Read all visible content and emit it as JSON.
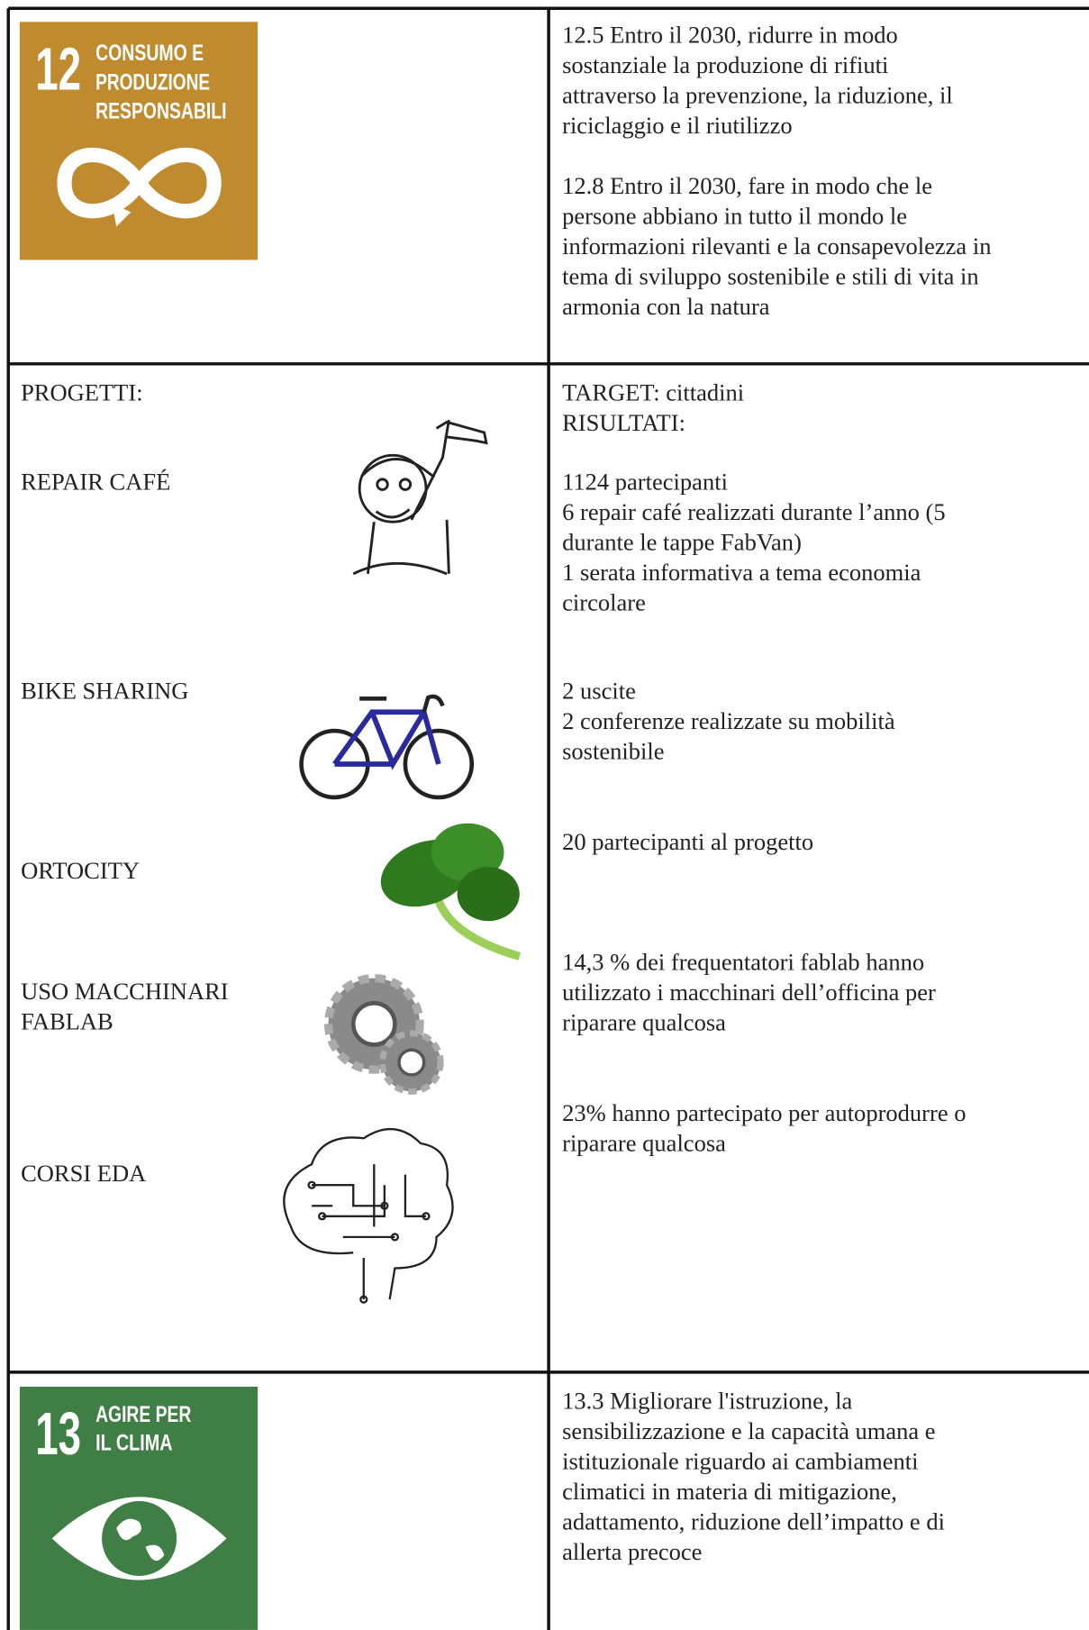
{
  "rows": [
    {
      "left": {
        "sdg": {
          "number": "12",
          "title": [
            "CONSUMO E",
            "PRODUZIONE",
            "RESPONSABILI"
          ]
        }
      },
      "right": {
        "paragraphs": [
          [
            "12.5 Entro il 2030, ridurre in modo",
            "sostanziale la produzione di rifiuti",
            "attraverso la prevenzione, la riduzione, il",
            "riciclaggio e il riutilizzo"
          ],
          [
            "12.8 Entro il 2030, fare in modo che le",
            "persone abbiano in tutto il mondo le",
            "informazioni rilevanti e la consapevolezza in",
            "tema di sviluppo sostenibile e stili di vita in",
            "armonia con la natura"
          ]
        ]
      }
    },
    {
      "left": {
        "heading": "PROGETTI:",
        "projects": [
          [
            "REPAIR CAFÉ"
          ],
          [
            "BIKE SHARING"
          ],
          [
            "ORTOCITY"
          ],
          [
            "USO MACCHINARI",
            "FABLAB"
          ],
          [
            "CORSI EDA"
          ]
        ]
      },
      "right": {
        "paragraphs": [
          [
            "TARGET: cittadini",
            "RISULTATI:"
          ],
          [
            "1124 partecipanti",
            "6 repair café realizzati durante l’anno (5",
            "durante le tappe FabVan)",
            "1 serata informativa a tema economia",
            "circolare"
          ],
          [
            "2 uscite",
            "2 conferenze realizzate su mobilità",
            "sostenibile"
          ],
          [
            "20 partecipanti al progetto"
          ],
          [
            "14,3 % dei frequentatori fablab hanno",
            "utilizzato i macchinari dell’officina per",
            "riparare qualcosa"
          ],
          [
            "23% hanno partecipato per autoprodurre o",
            "riparare qualcosa"
          ]
        ]
      }
    },
    {
      "left": {
        "sdg": {
          "number": "13",
          "title": [
            "AGIRE PER",
            "IL CLIMA"
          ]
        }
      },
      "right": {
        "paragraphs": [
          [
            "13.3 Migliorare l'istruzione, la",
            "sensibilizzazione e la capacità umana e",
            "istituzionale riguardo ai cambiamenti",
            "climatici in materia di mitigazione,",
            "adattamento, riduzione dell’impatto e di",
            "allerta precoce"
          ]
        ]
      }
    }
  ]
}
